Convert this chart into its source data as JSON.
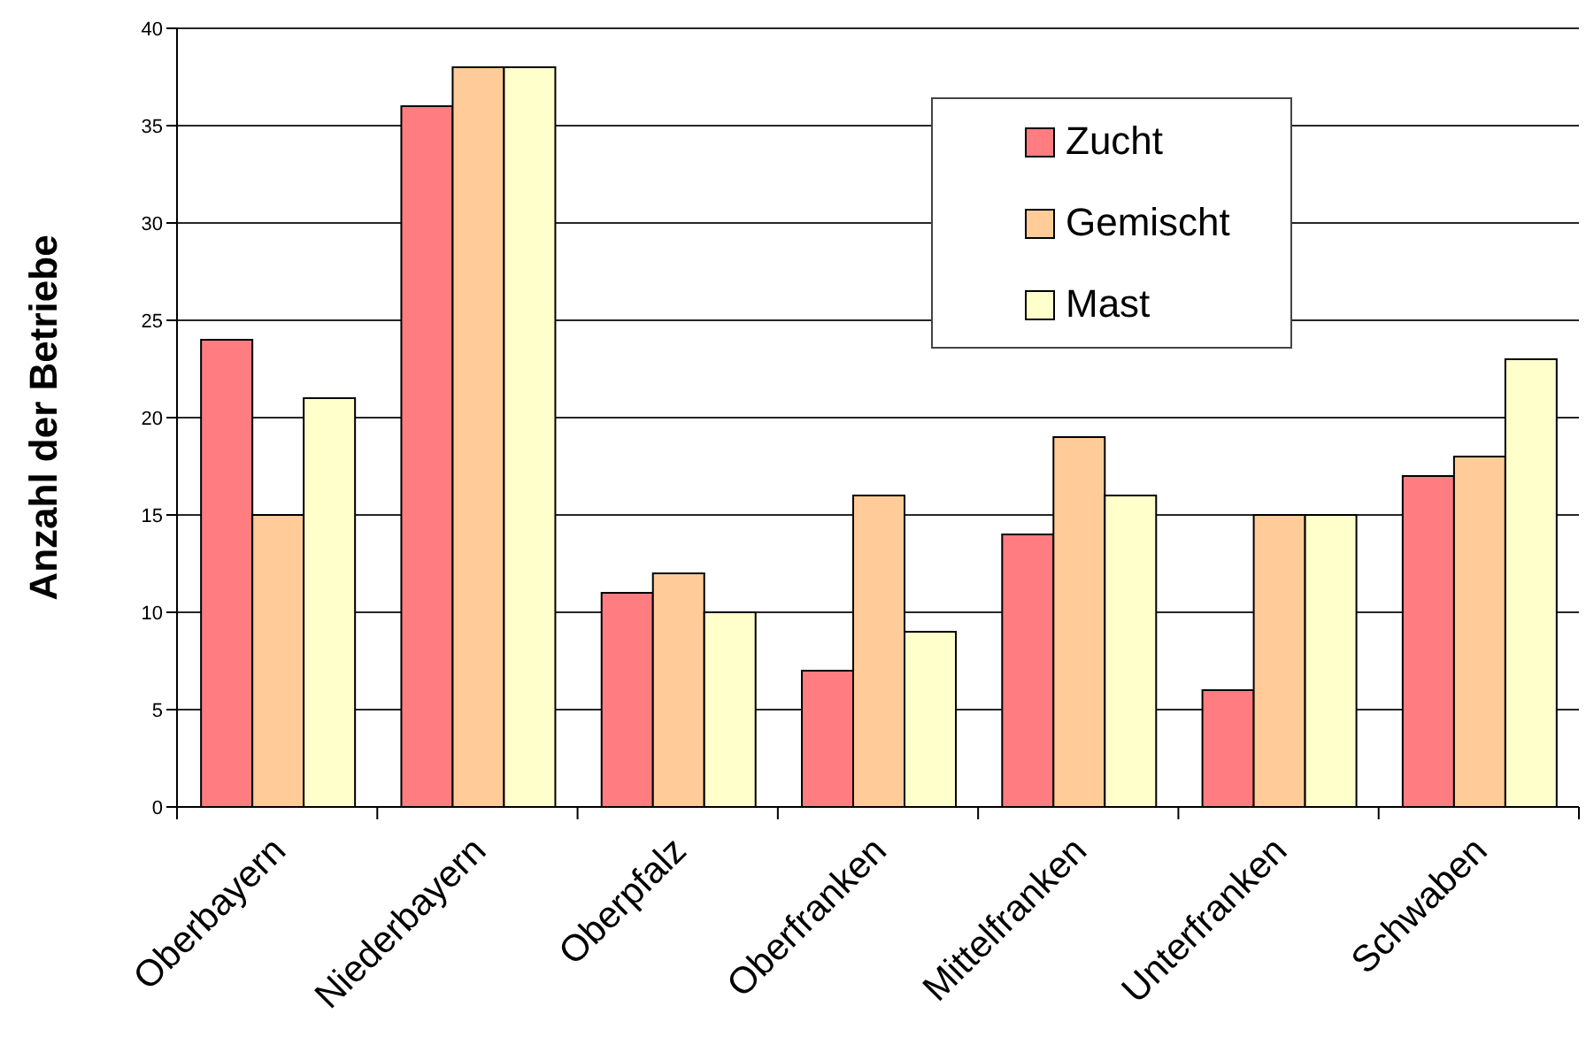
{
  "chart_data": {
    "type": "bar",
    "ylabel": "Anzahl der Betriebe",
    "categories": [
      "Oberbayern",
      "Niederbayern",
      "Oberpfalz",
      "Oberfranken",
      "Mittelfranken",
      "Unterfranken",
      "Schwaben"
    ],
    "series": [
      {
        "name": "Zucht",
        "color": "#ff7c80",
        "values": [
          24,
          36,
          11,
          7,
          14,
          6,
          17
        ]
      },
      {
        "name": "Gemischt",
        "color": "#ffcc99",
        "values": [
          15,
          38,
          12,
          16,
          19,
          15,
          18
        ]
      },
      {
        "name": "Mast",
        "color": "#ffffcc",
        "values": [
          21,
          38,
          10,
          9,
          16,
          15,
          23
        ]
      }
    ],
    "ylim": [
      0,
      40
    ],
    "yticks": [
      0,
      5,
      10,
      15,
      20,
      25,
      30,
      35,
      40
    ],
    "grid": "y",
    "legend": "top right"
  }
}
